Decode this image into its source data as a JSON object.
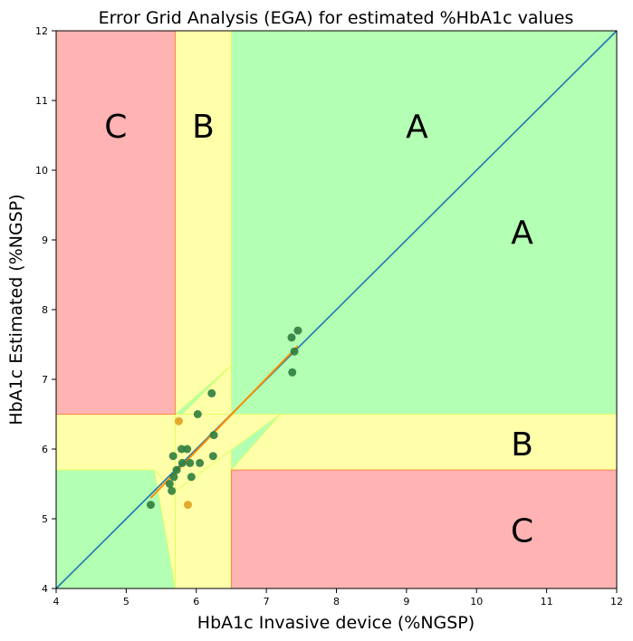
{
  "chart_data": {
    "type": "scatter",
    "title": "Error Grid Analysis (EGA) for estimated %HbA1c values",
    "xlabel": "HbA1c Invasive device (%NGSP)",
    "ylabel": "HbA1c Estimated (%NGSP)",
    "xlim": [
      4,
      12
    ],
    "ylim": [
      4,
      12
    ],
    "xticks": [
      "4",
      "5",
      "6",
      "7",
      "8",
      "9",
      "10",
      "11",
      "12"
    ],
    "yticks": [
      "4",
      "5",
      "6",
      "7",
      "8",
      "9",
      "10",
      "11",
      "12"
    ],
    "grid": false,
    "colors": {
      "zone_a": "#b3ffb3",
      "zone_b": "#ffffaa",
      "zone_c": "#ffb3b3",
      "zone_b_edge": "#ddff66",
      "zone_c_edge": "#ff8844",
      "identity_line": "#1f77b4",
      "fit_line": "#ff8c00",
      "points_a": "#2e7d3f",
      "points_b": "#e0a020"
    },
    "zones": [
      {
        "label": "A",
        "color_key": "zone_a",
        "polygon": [
          [
            4,
            4
          ],
          [
            12,
            4
          ],
          [
            12,
            12
          ],
          [
            4,
            12
          ]
        ]
      },
      {
        "label": "B",
        "color_key": "zone_b",
        "polygon": [
          [
            5.7,
            4
          ],
          [
            6.5,
            4
          ],
          [
            6.5,
            7.2
          ],
          [
            5.7,
            6.4
          ]
        ]
      },
      {
        "label": "B",
        "color_key": "zone_b",
        "polygon": [
          [
            5.7,
            5.4
          ],
          [
            5.7,
            4
          ],
          [
            5.4,
            5.7
          ],
          [
            4,
            5.7
          ],
          [
            4,
            6.5
          ],
          [
            12,
            6.5
          ],
          [
            12,
            5.7
          ],
          [
            6.5,
            5.7
          ],
          [
            7.2,
            6.5
          ]
        ]
      },
      {
        "label": "B",
        "color_key": "zone_b",
        "polygon": [
          [
            5.7,
            12
          ],
          [
            6.5,
            12
          ],
          [
            6.5,
            7.2
          ],
          [
            5.7,
            6.5
          ]
        ]
      },
      {
        "label": "B",
        "color_key": "zone_b",
        "polygon": [
          [
            4,
            5.7
          ],
          [
            5.4,
            5.7
          ],
          [
            5.7,
            5.4
          ],
          [
            5.7,
            6.5
          ],
          [
            4,
            6.5
          ]
        ]
      },
      {
        "label": "C",
        "color_key": "zone_c",
        "polygon": [
          [
            4,
            6.5
          ],
          [
            5.7,
            6.5
          ],
          [
            5.7,
            12
          ],
          [
            4,
            12
          ]
        ]
      },
      {
        "label": "C",
        "color_key": "zone_c",
        "polygon": [
          [
            6.5,
            4
          ],
          [
            12,
            4
          ],
          [
            12,
            5.7
          ],
          [
            6.5,
            5.7
          ]
        ]
      }
    ],
    "zone_labels": [
      {
        "text": "C",
        "x": 4.85,
        "y": 10.6
      },
      {
        "text": "B",
        "x": 6.1,
        "y": 10.6
      },
      {
        "text": "A",
        "x": 9.15,
        "y": 10.6
      },
      {
        "text": "A",
        "x": 10.65,
        "y": 9.08
      },
      {
        "text": "B",
        "x": 10.65,
        "y": 6.04
      },
      {
        "text": "C",
        "x": 10.65,
        "y": 4.8
      }
    ],
    "series": [
      {
        "color_key": "points_a",
        "points": [
          [
            5.35,
            5.2
          ],
          [
            5.62,
            5.5
          ],
          [
            5.65,
            5.4
          ],
          [
            5.67,
            5.9
          ],
          [
            5.68,
            5.6
          ],
          [
            5.72,
            5.7
          ],
          [
            5.79,
            6.0
          ],
          [
            5.8,
            5.8
          ],
          [
            5.87,
            6.0
          ],
          [
            5.91,
            5.8
          ],
          [
            5.93,
            5.6
          ],
          [
            6.02,
            6.5
          ],
          [
            6.05,
            5.8
          ],
          [
            6.22,
            6.8
          ],
          [
            6.24,
            5.9
          ],
          [
            6.25,
            6.2
          ],
          [
            7.36,
            7.6
          ],
          [
            7.37,
            7.1
          ],
          [
            7.4,
            7.4
          ],
          [
            7.45,
            7.7
          ]
        ]
      },
      {
        "color_key": "points_b",
        "points": [
          [
            5.75,
            6.4
          ],
          [
            5.88,
            5.2
          ]
        ]
      }
    ],
    "lines": [
      {
        "color_key": "identity_line",
        "from": [
          4,
          4
        ],
        "to": [
          12,
          12
        ]
      },
      {
        "color_key": "fit_line",
        "from": [
          5.35,
          5.3
        ],
        "to": [
          7.45,
          7.48
        ]
      }
    ]
  }
}
